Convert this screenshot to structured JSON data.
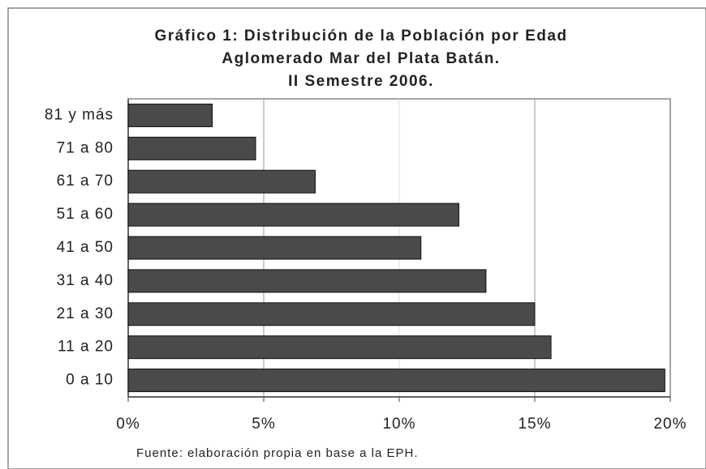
{
  "chart_data": {
    "type": "barh",
    "title": [
      "Gráfico 1: Distribución de la Población por Edad",
      "Aglomerado Mar del Plata Batán.",
      "II Semestre 2006."
    ],
    "categories": [
      "0 a 10",
      "11 a 20",
      "21 a 30",
      "31 a 40",
      "41 a 50",
      "51 a 60",
      "61 a 70",
      "71 a 80",
      "81 y más"
    ],
    "values": [
      19.8,
      15.6,
      15.0,
      13.2,
      10.8,
      12.2,
      6.9,
      4.7,
      3.1
    ],
    "color": "#4a4a4a",
    "xlim": [
      0,
      20
    ],
    "xticks": [
      {
        "value": 0,
        "label": "0%"
      },
      {
        "value": 5,
        "label": "5%"
      },
      {
        "value": 10,
        "label": "10%"
      },
      {
        "value": 15,
        "label": "15%"
      },
      {
        "value": 20,
        "label": "20%"
      }
    ],
    "grid": true,
    "note": "Fuente: elaboración propia en base a la EPH."
  }
}
